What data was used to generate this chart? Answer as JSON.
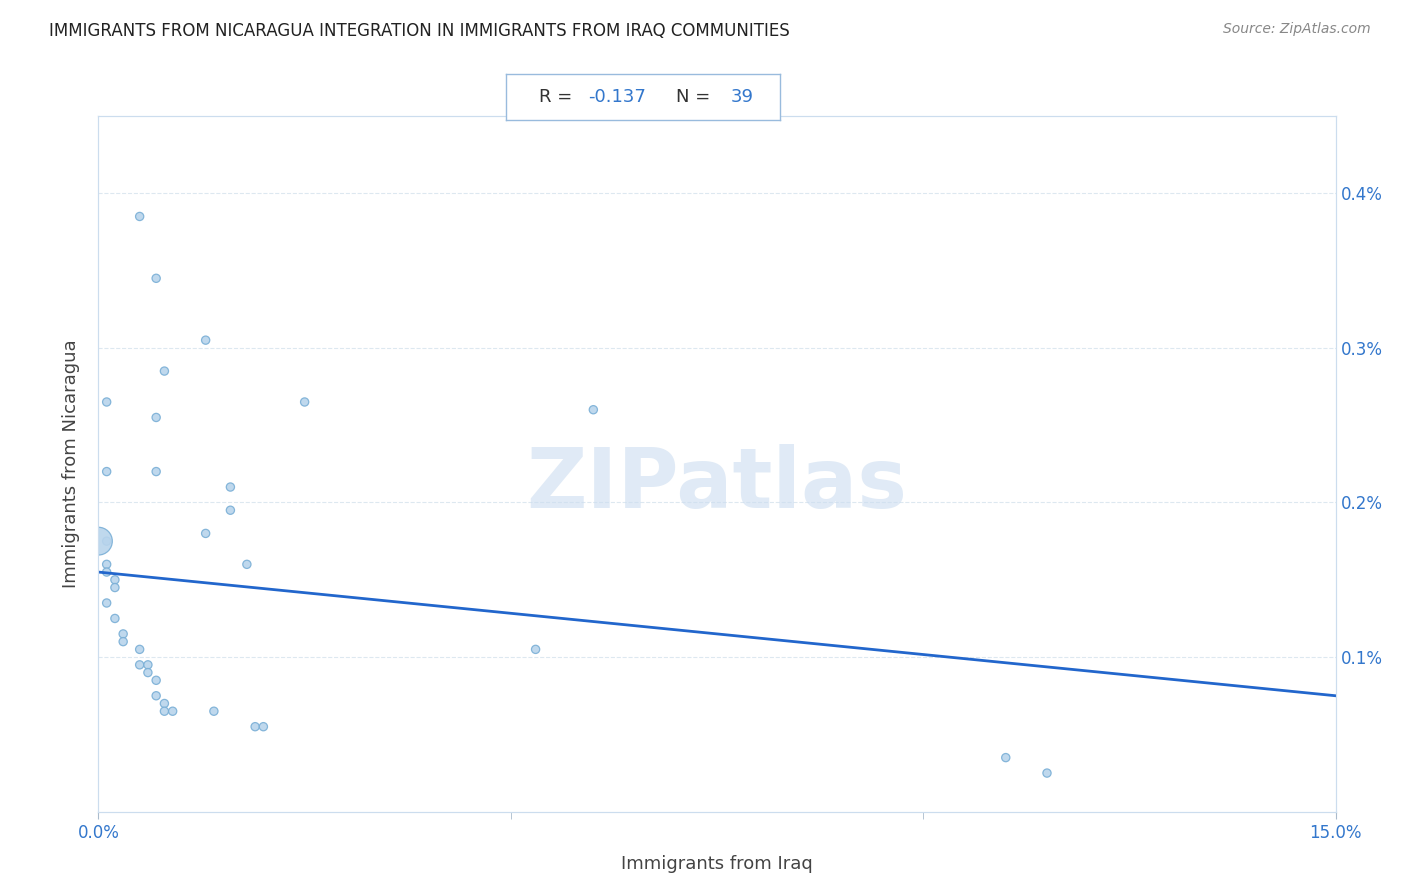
{
  "title": "IMMIGRANTS FROM NICARAGUA INTEGRATION IN IMMIGRANTS FROM IRAQ COMMUNITIES",
  "source": "Source: ZipAtlas.com",
  "xlabel": "Immigrants from Iraq",
  "ylabel": "Immigrants from Nicaragua",
  "xlim": [
    0,
    0.15
  ],
  "ylim": [
    0,
    0.0045
  ],
  "ytick_vals": [
    0.001,
    0.002,
    0.003,
    0.004
  ],
  "ytick_labels": [
    "0.1%",
    "0.2%",
    "0.3%",
    "0.4%"
  ],
  "xtick_vals": [
    0.0,
    0.15
  ],
  "xtick_labels": [
    "0.0%",
    "15.0%"
  ],
  "background_color": "#ffffff",
  "scatter_color": "#b8d4ec",
  "scatter_edge_color": "#7aafd6",
  "line_color": "#2266cc",
  "grid_color": "#dde8f0",
  "title_color": "#222222",
  "axis_label_color": "#444444",
  "tick_label_color": "#3377cc",
  "watermark": "ZIPatlas",
  "scatter_points": [
    [
      0.005,
      0.00385
    ],
    [
      0.007,
      0.00345
    ],
    [
      0.008,
      0.00285
    ],
    [
      0.013,
      0.00305
    ],
    [
      0.025,
      0.00265
    ],
    [
      0.007,
      0.00255
    ],
    [
      0.007,
      0.0022
    ],
    [
      0.016,
      0.0021
    ],
    [
      0.016,
      0.00195
    ],
    [
      0.013,
      0.0018
    ],
    [
      0.06,
      0.0026
    ],
    [
      0.001,
      0.00265
    ],
    [
      0.001,
      0.0022
    ],
    [
      0.001,
      0.00175
    ],
    [
      0.001,
      0.0016
    ],
    [
      0.001,
      0.00155
    ],
    [
      0.002,
      0.0015
    ],
    [
      0.002,
      0.00145
    ],
    [
      0.001,
      0.00135
    ],
    [
      0.002,
      0.00125
    ],
    [
      0.003,
      0.00115
    ],
    [
      0.003,
      0.0011
    ],
    [
      0.005,
      0.00105
    ],
    [
      0.005,
      0.00095
    ],
    [
      0.006,
      0.00095
    ],
    [
      0.006,
      0.0009
    ],
    [
      0.007,
      0.00085
    ],
    [
      0.007,
      0.00075
    ],
    [
      0.008,
      0.0007
    ],
    [
      0.008,
      0.00065
    ],
    [
      0.009,
      0.00065
    ],
    [
      0.014,
      0.00065
    ],
    [
      0.019,
      0.00055
    ],
    [
      0.02,
      0.00055
    ],
    [
      0.053,
      0.00105
    ],
    [
      0.11,
      0.00035
    ],
    [
      0.115,
      0.00025
    ],
    [
      0.0,
      0.00175
    ],
    [
      0.018,
      0.0016
    ]
  ],
  "scatter_sizes": [
    35,
    35,
    35,
    35,
    35,
    35,
    35,
    35,
    35,
    35,
    35,
    35,
    35,
    35,
    35,
    35,
    35,
    35,
    35,
    35,
    35,
    35,
    35,
    35,
    35,
    35,
    35,
    35,
    35,
    35,
    35,
    35,
    35,
    35,
    35,
    35,
    35,
    400,
    35
  ],
  "trendline_x": [
    0.0,
    0.15
  ],
  "trendline_y": [
    0.00155,
    0.00075
  ]
}
